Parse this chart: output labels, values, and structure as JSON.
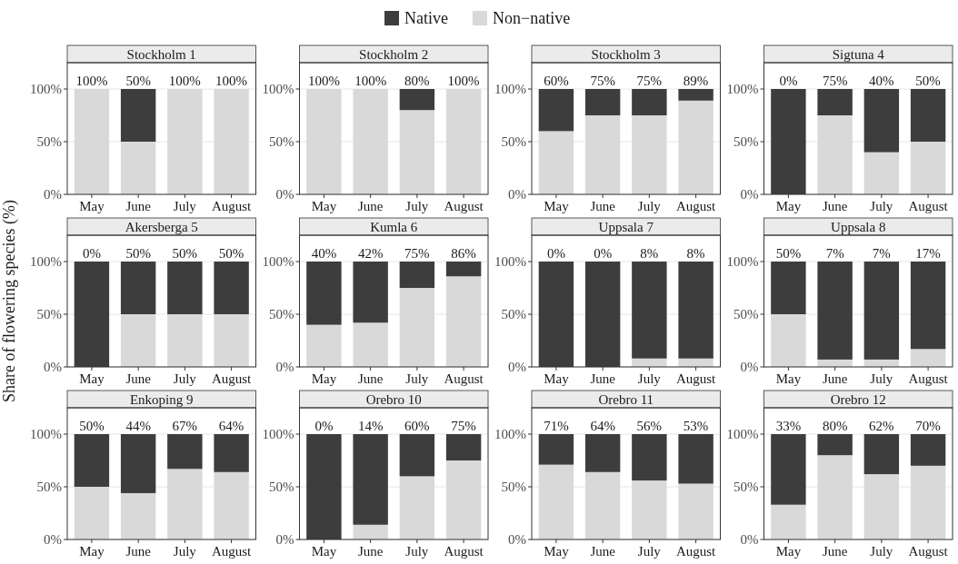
{
  "chart_data": [
    {
      "type": "bar",
      "title": "Stockholm 1",
      "categories": [
        "May",
        "June",
        "July",
        "August"
      ],
      "stacked": true,
      "ylim": [
        0,
        125
      ],
      "yticks": [
        {
          "value": 0,
          "label": "0%"
        },
        {
          "value": 50,
          "label": "50%"
        },
        {
          "value": 100,
          "label": "100%"
        }
      ],
      "grid": "y",
      "annotations": [
        {
          "text": "100%",
          "x": "May",
          "y": 100
        },
        {
          "text": "50%",
          "x": "June",
          "y": 100
        },
        {
          "text": "100%",
          "x": "July",
          "y": 100
        },
        {
          "text": "100%",
          "x": "August",
          "y": 100
        }
      ],
      "series": [
        {
          "color": "#d9d9d9",
          "values": [
            100,
            50,
            100,
            100
          ]
        },
        {
          "color": "#3d3d3d",
          "values": [
            0,
            50,
            0,
            0
          ]
        }
      ]
    },
    {
      "type": "bar",
      "title": "Stockholm 2",
      "legend": "top",
      "categories": [
        "May",
        "June",
        "July",
        "August"
      ],
      "stacked": true,
      "ylim": [
        0,
        125
      ],
      "yticks": [
        {
          "value": 0,
          "label": "0%"
        },
        {
          "value": 50,
          "label": "50%"
        },
        {
          "value": 100,
          "label": "100%"
        }
      ],
      "grid": "y",
      "annotations": [
        {
          "text": "100%",
          "x": "May",
          "y": 100
        },
        {
          "text": "100%",
          "x": "June",
          "y": 100
        },
        {
          "text": "80%",
          "x": "July",
          "y": 100
        },
        {
          "text": "100%",
          "x": "August",
          "y": 100
        }
      ],
      "series": [
        {
          "name": "Non−native",
          "color": "#d9d9d9",
          "values": [
            100,
            100,
            80,
            100
          ]
        },
        {
          "name": "Native",
          "color": "#3d3d3d",
          "values": [
            0,
            0,
            20,
            0
          ]
        }
      ]
    },
    {
      "type": "bar",
      "title": "Stockholm 3",
      "categories": [
        "May",
        "June",
        "July",
        "August"
      ],
      "stacked": true,
      "ylim": [
        0,
        125
      ],
      "yticks": [
        {
          "value": 0,
          "label": "0%"
        },
        {
          "value": 50,
          "label": "50%"
        },
        {
          "value": 100,
          "label": "100%"
        }
      ],
      "grid": "y",
      "annotations": [
        {
          "text": "60%",
          "x": "May",
          "y": 100
        },
        {
          "text": "75%",
          "x": "June",
          "y": 100
        },
        {
          "text": "75%",
          "x": "July",
          "y": 100
        },
        {
          "text": "89%",
          "x": "August",
          "y": 100
        }
      ],
      "series": [
        {
          "color": "#d9d9d9",
          "values": [
            60,
            75,
            75,
            89
          ]
        },
        {
          "color": "#3d3d3d",
          "values": [
            40,
            25,
            25,
            11
          ]
        }
      ]
    },
    {
      "type": "bar",
      "title": "Sigtuna 4",
      "categories": [
        "May",
        "June",
        "July",
        "August"
      ],
      "stacked": true,
      "ylim": [
        0,
        125
      ],
      "yticks": [
        {
          "value": 0,
          "label": "0%"
        },
        {
          "value": 50,
          "label": "50%"
        },
        {
          "value": 100,
          "label": "100%"
        }
      ],
      "grid": "y",
      "annotations": [
        {
          "text": "0%",
          "x": "May",
          "y": 100
        },
        {
          "text": "75%",
          "x": "June",
          "y": 100
        },
        {
          "text": "40%",
          "x": "July",
          "y": 100
        },
        {
          "text": "50%",
          "x": "August",
          "y": 100
        }
      ],
      "series": [
        {
          "color": "#d9d9d9",
          "values": [
            0,
            75,
            40,
            50
          ]
        },
        {
          "color": "#3d3d3d",
          "values": [
            100,
            25,
            60,
            50
          ]
        }
      ]
    },
    {
      "type": "bar",
      "title": "Akersberga 5",
      "ylabel": "Share of flowering species (%)",
      "categories": [
        "May",
        "June",
        "July",
        "August"
      ],
      "stacked": true,
      "ylim": [
        0,
        125
      ],
      "yticks": [
        {
          "value": 0,
          "label": "0%"
        },
        {
          "value": 50,
          "label": "50%"
        },
        {
          "value": 100,
          "label": "100%"
        }
      ],
      "grid": "y",
      "annotations": [
        {
          "text": "0%",
          "x": "May",
          "y": 100
        },
        {
          "text": "50%",
          "x": "June",
          "y": 100
        },
        {
          "text": "50%",
          "x": "July",
          "y": 100
        },
        {
          "text": "50%",
          "x": "August",
          "y": 100
        }
      ],
      "series": [
        {
          "color": "#d9d9d9",
          "values": [
            0,
            50,
            50,
            50
          ]
        },
        {
          "color": "#3d3d3d",
          "values": [
            100,
            50,
            50,
            50
          ]
        }
      ]
    },
    {
      "type": "bar",
      "title": "Kumla 6",
      "categories": [
        "May",
        "June",
        "July",
        "August"
      ],
      "stacked": true,
      "ylim": [
        0,
        125
      ],
      "yticks": [
        {
          "value": 0,
          "label": "0%"
        },
        {
          "value": 50,
          "label": "50%"
        },
        {
          "value": 100,
          "label": "100%"
        }
      ],
      "grid": "y",
      "annotations": [
        {
          "text": "40%",
          "x": "May",
          "y": 100
        },
        {
          "text": "42%",
          "x": "June",
          "y": 100
        },
        {
          "text": "75%",
          "x": "July",
          "y": 100
        },
        {
          "text": "86%",
          "x": "August",
          "y": 100
        }
      ],
      "series": [
        {
          "color": "#d9d9d9",
          "values": [
            40,
            42,
            75,
            86
          ]
        },
        {
          "color": "#3d3d3d",
          "values": [
            60,
            58,
            25,
            14
          ]
        }
      ]
    },
    {
      "type": "bar",
      "title": "Uppsala 7",
      "categories": [
        "May",
        "June",
        "July",
        "August"
      ],
      "stacked": true,
      "ylim": [
        0,
        125
      ],
      "yticks": [
        {
          "value": 0,
          "label": "0%"
        },
        {
          "value": 50,
          "label": "50%"
        },
        {
          "value": 100,
          "label": "100%"
        }
      ],
      "grid": "y",
      "annotations": [
        {
          "text": "0%",
          "x": "May",
          "y": 100
        },
        {
          "text": "0%",
          "x": "June",
          "y": 100
        },
        {
          "text": "8%",
          "x": "July",
          "y": 100
        },
        {
          "text": "8%",
          "x": "August",
          "y": 100
        }
      ],
      "series": [
        {
          "color": "#d9d9d9",
          "values": [
            0,
            0,
            8,
            8
          ]
        },
        {
          "color": "#3d3d3d",
          "values": [
            100,
            100,
            92,
            92
          ]
        }
      ]
    },
    {
      "type": "bar",
      "title": "Uppsala 8",
      "categories": [
        "May",
        "June",
        "July",
        "August"
      ],
      "stacked": true,
      "ylim": [
        0,
        125
      ],
      "yticks": [
        {
          "value": 0,
          "label": "0%"
        },
        {
          "value": 50,
          "label": "50%"
        },
        {
          "value": 100,
          "label": "100%"
        }
      ],
      "grid": "y",
      "annotations": [
        {
          "text": "50%",
          "x": "May",
          "y": 100
        },
        {
          "text": "7%",
          "x": "June",
          "y": 100
        },
        {
          "text": "7%",
          "x": "July",
          "y": 100
        },
        {
          "text": "17%",
          "x": "August",
          "y": 100
        }
      ],
      "series": [
        {
          "color": "#d9d9d9",
          "values": [
            50,
            7,
            7,
            17
          ]
        },
        {
          "color": "#3d3d3d",
          "values": [
            50,
            93,
            93,
            83
          ]
        }
      ]
    },
    {
      "type": "bar",
      "title": "Enkoping 9",
      "categories": [
        "May",
        "June",
        "July",
        "August"
      ],
      "stacked": true,
      "ylim": [
        0,
        125
      ],
      "yticks": [
        {
          "value": 0,
          "label": "0%"
        },
        {
          "value": 50,
          "label": "50%"
        },
        {
          "value": 100,
          "label": "100%"
        }
      ],
      "grid": "y",
      "annotations": [
        {
          "text": "50%",
          "x": "May",
          "y": 100
        },
        {
          "text": "44%",
          "x": "June",
          "y": 100
        },
        {
          "text": "67%",
          "x": "July",
          "y": 100
        },
        {
          "text": "64%",
          "x": "August",
          "y": 100
        }
      ],
      "series": [
        {
          "color": "#d9d9d9",
          "values": [
            50,
            44,
            67,
            64
          ]
        },
        {
          "color": "#3d3d3d",
          "values": [
            50,
            56,
            33,
            36
          ]
        }
      ]
    },
    {
      "type": "bar",
      "title": "Orebro 10",
      "categories": [
        "May",
        "June",
        "July",
        "August"
      ],
      "stacked": true,
      "ylim": [
        0,
        125
      ],
      "yticks": [
        {
          "value": 0,
          "label": "0%"
        },
        {
          "value": 50,
          "label": "50%"
        },
        {
          "value": 100,
          "label": "100%"
        }
      ],
      "grid": "y",
      "annotations": [
        {
          "text": "0%",
          "x": "May",
          "y": 100
        },
        {
          "text": "14%",
          "x": "June",
          "y": 100
        },
        {
          "text": "60%",
          "x": "July",
          "y": 100
        },
        {
          "text": "75%",
          "x": "August",
          "y": 100
        }
      ],
      "series": [
        {
          "color": "#d9d9d9",
          "values": [
            0,
            14,
            60,
            75
          ]
        },
        {
          "color": "#3d3d3d",
          "values": [
            100,
            86,
            40,
            25
          ]
        }
      ]
    },
    {
      "type": "bar",
      "title": "Orebro 11",
      "categories": [
        "May",
        "June",
        "July",
        "August"
      ],
      "stacked": true,
      "ylim": [
        0,
        125
      ],
      "yticks": [
        {
          "value": 0,
          "label": "0%"
        },
        {
          "value": 50,
          "label": "50%"
        },
        {
          "value": 100,
          "label": "100%"
        }
      ],
      "grid": "y",
      "annotations": [
        {
          "text": "71%",
          "x": "May",
          "y": 100
        },
        {
          "text": "64%",
          "x": "June",
          "y": 100
        },
        {
          "text": "56%",
          "x": "July",
          "y": 100
        },
        {
          "text": "53%",
          "x": "August",
          "y": 100
        }
      ],
      "series": [
        {
          "color": "#d9d9d9",
          "values": [
            71,
            64,
            56,
            53
          ]
        },
        {
          "color": "#3d3d3d",
          "values": [
            29,
            36,
            44,
            47
          ]
        }
      ]
    },
    {
      "type": "bar",
      "title": "Orebro 12",
      "categories": [
        "May",
        "June",
        "July",
        "August"
      ],
      "stacked": true,
      "ylim": [
        0,
        125
      ],
      "yticks": [
        {
          "value": 0,
          "label": "0%"
        },
        {
          "value": 50,
          "label": "50%"
        },
        {
          "value": 100,
          "label": "100%"
        }
      ],
      "grid": "y",
      "annotations": [
        {
          "text": "33%",
          "x": "May",
          "y": 100
        },
        {
          "text": "80%",
          "x": "June",
          "y": 100
        },
        {
          "text": "62%",
          "x": "July",
          "y": 100
        },
        {
          "text": "70%",
          "x": "August",
          "y": 100
        }
      ],
      "series": [
        {
          "color": "#d9d9d9",
          "values": [
            33,
            80,
            62,
            70
          ]
        },
        {
          "color": "#3d3d3d",
          "values": [
            67,
            20,
            38,
            30
          ]
        }
      ]
    }
  ]
}
